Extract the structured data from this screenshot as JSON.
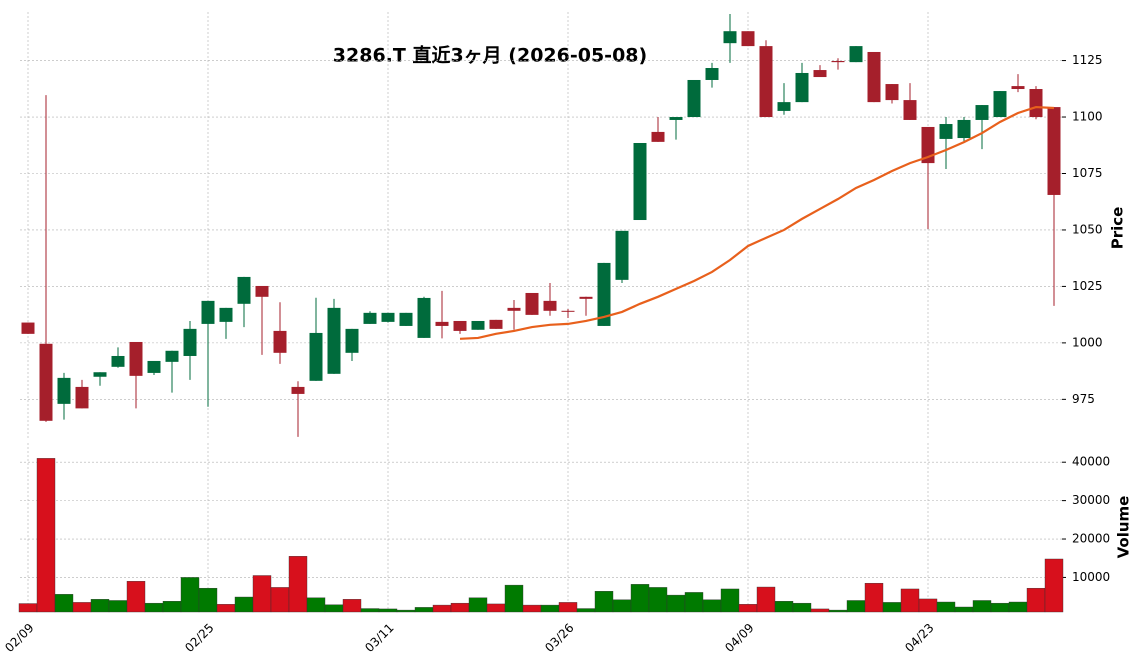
{
  "chart_data": {
    "type": "candlestick",
    "title": "3286.T  直近3ヶ月  (2026-05-08)",
    "categories": [
      "02/09",
      null,
      null,
      null,
      null,
      null,
      null,
      null,
      null,
      null,
      "02/25",
      null,
      null,
      null,
      null,
      null,
      null,
      null,
      null,
      null,
      "03/11",
      null,
      null,
      null,
      null,
      null,
      null,
      null,
      null,
      null,
      "03/26",
      null,
      null,
      null,
      null,
      null,
      null,
      null,
      null,
      null,
      "04/09",
      null,
      null,
      null,
      null,
      null,
      null,
      null,
      null,
      null,
      "04/23",
      null,
      null,
      null,
      null,
      null,
      null,
      null
    ],
    "open": [
      1009,
      999.6,
      973,
      980.5,
      985,
      989.4,
      1000.4,
      986.7,
      991.6,
      994.2,
      1008.4,
      1009.3,
      1017.3,
      1025.2,
      1005.3,
      980.5,
      983.2,
      986.3,
      995.6,
      1008.4,
      1009.3,
      1007.5,
      1002.2,
      1009.3,
      1009.7,
      1005.8,
      1010.2,
      1015.5,
      1022.1,
      1018.6,
      1014.2,
      1020.4,
      1007.5,
      1027.9,
      1054.4,
      1093.4,
      1098.7,
      1100,
      1116.4,
      1132.7,
      1138,
      1131.4,
      1102.7,
      1106.6,
      1120.8,
      1124.8,
      1124.3,
      1128.8,
      1114.6,
      1107.5,
      1095.6,
      1090.3,
      1090.7,
      1098.7,
      1100,
      1113.7,
      1112.4,
      1104.4
    ],
    "high": [
      1009,
      1109.7,
      986.7,
      983.6,
      987,
      998,
      1000.4,
      992,
      996.5,
      1009.7,
      1018.6,
      1015.5,
      1029.2,
      1025.2,
      1018,
      983,
      1020,
      1019.5,
      1006.2,
      1014,
      1013.3,
      1013.3,
      1020.4,
      1023,
      1009.7,
      1009.7,
      1010.2,
      1019,
      1022.1,
      1026.5,
      1015,
      1020.4,
      1035.4,
      1049.6,
      1088.5,
      1100,
      1100,
      1116.4,
      1124,
      1145.6,
      1138,
      1134,
      1115,
      1124,
      1123,
      1126,
      1131.4,
      1128.8,
      1114.6,
      1115,
      1095.6,
      1100,
      1100,
      1105.3,
      1111.5,
      1119,
      1113.7,
      1104.4
    ],
    "low": [
      1004,
      965,
      966,
      971,
      981,
      989,
      971,
      985.8,
      978,
      983.6,
      971.7,
      1001.8,
      1007,
      994.7,
      990.7,
      958.4,
      983.2,
      986.3,
      992,
      1008.4,
      1009,
      1007.5,
      1002.2,
      1002,
      1004,
      1005.8,
      1006.2,
      1005.8,
      1012.4,
      1012,
      1011,
      1012,
      1007.5,
      1026.5,
      1054.4,
      1089,
      1090,
      1100,
      1113,
      1124,
      1131.4,
      1100,
      1101,
      1106.6,
      1117.7,
      1121,
      1124.3,
      1106.6,
      1106,
      1098.7,
      1050.4,
      1077,
      1089,
      1085.8,
      1100,
      1111,
      1099,
      1016.4
    ],
    "close": [
      1004,
      965.5,
      984.5,
      971,
      987,
      994.2,
      985.4,
      992,
      996.5,
      1006.2,
      1018.6,
      1015.5,
      1029.2,
      1020.4,
      995.6,
      977.4,
      1004.4,
      1015.5,
      1006.2,
      1013.3,
      1013.3,
      1013.3,
      1019.9,
      1007.5,
      1005.3,
      1009.7,
      1006.2,
      1014.2,
      1012.4,
      1014.2,
      1013.8,
      1019.5,
      1035.4,
      1049.6,
      1088.5,
      1089,
      1100,
      1116.4,
      1121.7,
      1138,
      1131.4,
      1100,
      1106.6,
      1119.5,
      1117.7,
      1124.3,
      1131.4,
      1106.6,
      1107.5,
      1098.7,
      1079.6,
      1096.9,
      1098.7,
      1105.3,
      1111.5,
      1112.4,
      1100,
      1065.5
    ],
    "up_color": "#006b3c",
    "down_color": "#a51f2b",
    "ylabel": "Price",
    "ylim": [
      957,
      1146.5
    ],
    "yticks": [
      975,
      1000,
      1025,
      1050,
      1075,
      1100,
      1125
    ],
    "grid": true,
    "moving_average": {
      "color": "#e8601c",
      "values": [
        null,
        null,
        null,
        null,
        null,
        null,
        null,
        null,
        null,
        null,
        null,
        null,
        null,
        null,
        null,
        null,
        null,
        null,
        null,
        null,
        null,
        null,
        null,
        null,
        1001.8,
        1002.2,
        1004,
        1005.3,
        1007,
        1008,
        1008.4,
        1009.7,
        1011.5,
        1013.7,
        1017.3,
        1020.4,
        1023.9,
        1027.4,
        1031.4,
        1036.7,
        1042.9,
        1046.5,
        1050,
        1054.9,
        1059.3,
        1063.7,
        1068.6,
        1072.1,
        1076.1,
        1079.6,
        1082.3,
        1085.4,
        1088.9,
        1092.9,
        1097.8,
        1101.8,
        1104.4,
        1104
      ]
    },
    "volume": {
      "ylabel": "Volume",
      "values": [
        3200,
        41000,
        5600,
        3500,
        4300,
        4000,
        9000,
        3300,
        3800,
        10000,
        7200,
        3000,
        4900,
        10500,
        7400,
        15500,
        4700,
        2900,
        4300,
        1900,
        1800,
        1500,
        2200,
        2800,
        3300,
        4700,
        3100,
        8000,
        2800,
        2800,
        3500,
        1900,
        6400,
        4200,
        8200,
        7400,
        5400,
        6100,
        4200,
        7000,
        3000,
        7500,
        3800,
        3300,
        1800,
        1500,
        4000,
        8500,
        3500,
        7000,
        4400,
        3600,
        2300,
        4000,
        3300,
        3600,
        7200,
        14800
      ],
      "up_color": "#007a00",
      "down_color": "#d7101c",
      "ylim": [
        1000,
        45000
      ],
      "yticks": [
        10000,
        20000,
        30000,
        40000
      ]
    }
  }
}
